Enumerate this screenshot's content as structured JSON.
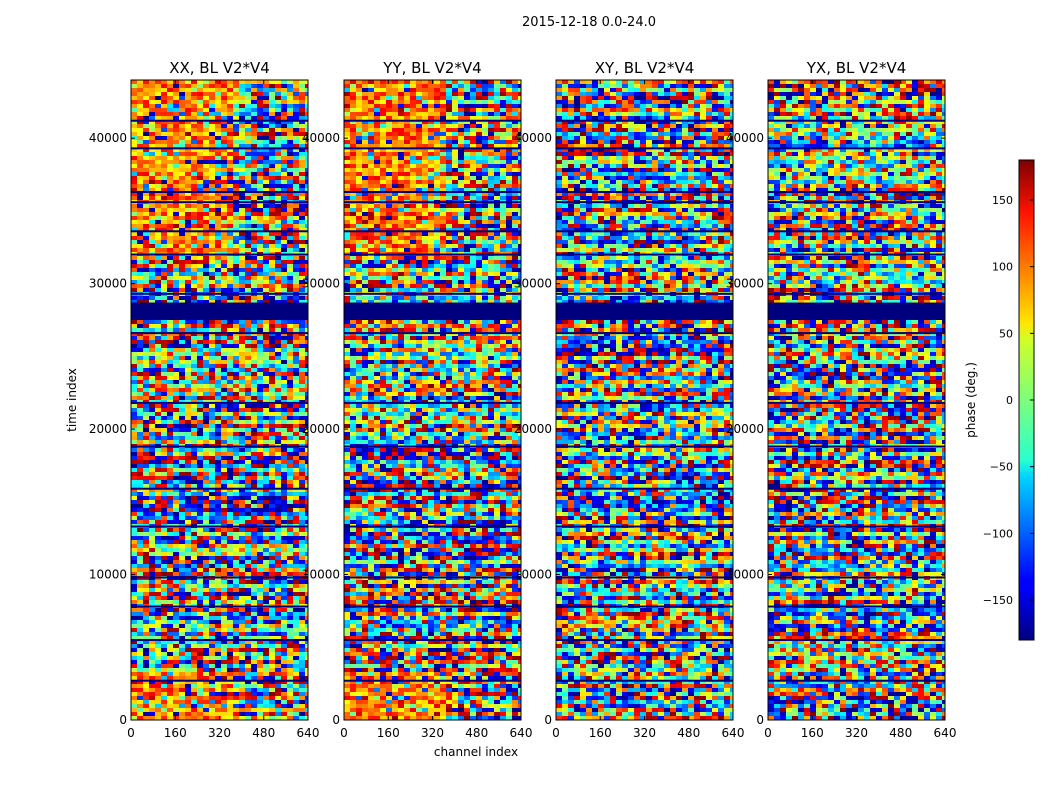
{
  "chart_data": {
    "type": "heatmap",
    "suptitle": "2015-12-18 0.0-24.0",
    "xlabel": "channel index",
    "ylabel": "time index",
    "xlim": [
      0,
      640
    ],
    "ylim": [
      0,
      44000
    ],
    "xticks": [
      0,
      160,
      320,
      480,
      640
    ],
    "yticks": [
      0,
      10000,
      20000,
      30000,
      40000
    ],
    "ytick_labels": [
      "0",
      "10000",
      "20000",
      "30000",
      "40000"
    ],
    "panels": [
      {
        "title": "XX, BL V2*V4",
        "product": "XX"
      },
      {
        "title": "YY, BL V2*V4",
        "product": "YY"
      },
      {
        "title": "XY, BL V2*V4",
        "product": "XY"
      },
      {
        "title": "YX, BL V2*V4",
        "product": "YX"
      }
    ],
    "colorbar": {
      "label": "phase (deg.)",
      "range": [
        -180,
        180
      ],
      "ticks": [
        150,
        100,
        50,
        0,
        -50,
        -100,
        -150
      ],
      "tick_labels": [
        "150",
        "100",
        "50",
        "0",
        "−50",
        "−100",
        "−150"
      ],
      "colormap": "jet"
    },
    "flagged_time_range": [
      27500,
      28700
    ],
    "flagged_value": -180,
    "data_gaps": [
      41200,
      39300,
      36300,
      35600,
      33600,
      32000,
      29300,
      26600,
      21800,
      18800,
      15900,
      13300,
      9800,
      7800,
      5500,
      2700
    ]
  }
}
